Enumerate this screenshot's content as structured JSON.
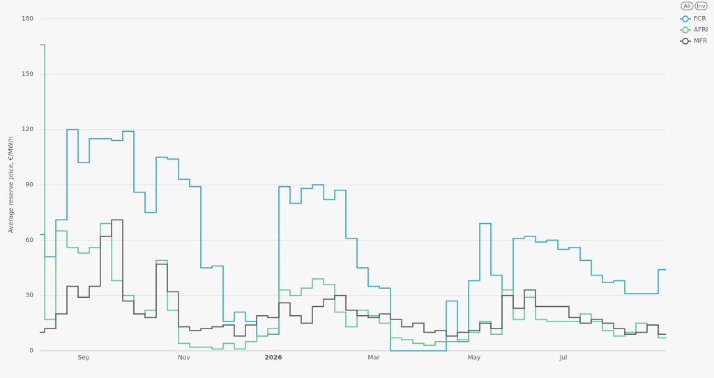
{
  "chart_data": {
    "type": "line",
    "step": true,
    "y_label": "Average reserve price, €/MW/h",
    "buttons": [
      "All",
      "Inv"
    ],
    "categories": [
      null,
      null,
      null,
      null,
      "Sep",
      null,
      null,
      null,
      null,
      null,
      null,
      null,
      null,
      "Nov",
      null,
      null,
      null,
      null,
      null,
      null,
      null,
      "2026",
      null,
      null,
      null,
      null,
      null,
      null,
      null,
      null,
      "Mar",
      null,
      null,
      null,
      null,
      null,
      null,
      null,
      null,
      "May",
      null,
      null,
      null,
      null,
      null,
      null,
      null,
      "Jul",
      null,
      null,
      null,
      null,
      null,
      null,
      null,
      null,
      null
    ],
    "series": [
      {
        "name": "FCR",
        "color": "#2aa5c7",
        "values": [
          63,
          51,
          71,
          120,
          102,
          115,
          115,
          114,
          119,
          86,
          75,
          105,
          104,
          93,
          89,
          45,
          46,
          16,
          21,
          16,
          8,
          9,
          89,
          80,
          88,
          90,
          82,
          87,
          61,
          45,
          35,
          34,
          0,
          0,
          0,
          0,
          0,
          27,
          5,
          38,
          69,
          41,
          33,
          61,
          62,
          59,
          60,
          55,
          56,
          49,
          41,
          37,
          38,
          31,
          31,
          31,
          44
        ]
      },
      {
        "name": "AFRR",
        "color": "#5cc48a",
        "values": [
          166,
          17,
          65,
          56,
          53,
          56,
          69,
          38,
          30,
          20,
          22,
          49,
          22,
          4,
          2,
          2,
          1,
          4,
          1,
          5,
          8,
          12,
          33,
          30,
          34,
          39,
          36,
          21,
          13,
          22,
          19,
          15,
          7,
          6,
          4,
          3,
          5,
          5,
          6,
          10,
          16,
          9,
          33,
          17,
          29,
          17,
          16,
          16,
          16,
          20,
          16,
          11,
          8,
          10,
          15,
          14,
          7
        ]
      },
      {
        "name": "MFRR",
        "color": "#555555",
        "values": [
          10,
          12,
          20,
          35,
          29,
          35,
          62,
          71,
          27,
          20,
          18,
          47,
          32,
          13,
          11,
          12,
          13,
          14,
          8,
          14,
          19,
          18,
          26,
          19,
          15,
          24,
          28,
          30,
          22,
          19,
          18,
          20,
          17,
          13,
          15,
          10,
          11,
          8,
          10,
          11,
          15,
          12,
          30,
          23,
          33,
          24,
          24,
          24,
          18,
          15,
          17,
          15,
          12,
          9,
          10,
          14,
          9
        ]
      }
    ],
    "ylim": [
      0,
      180
    ],
    "yticks": [
      0,
      30,
      60,
      90,
      120,
      150,
      180
    ],
    "grid": true
  }
}
